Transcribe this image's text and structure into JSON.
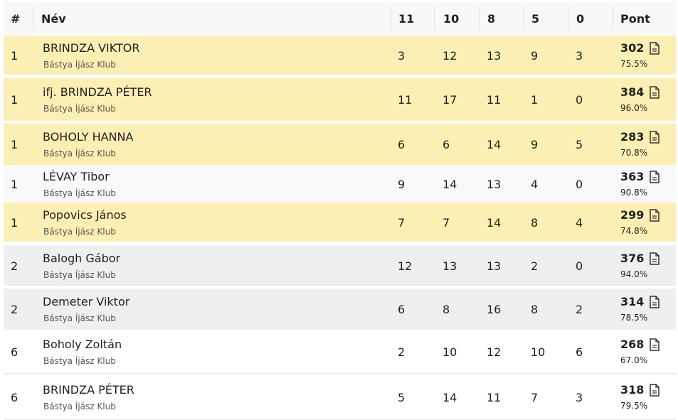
{
  "table": {
    "header": [
      "#",
      "Név",
      "11",
      "10",
      "8",
      "5",
      "0",
      "Pont"
    ],
    "rows": [
      {
        "rank": "1",
        "name": "BRINDZA VIKTOR",
        "club": "Bástya Íjász Klub",
        "counts": [
          3,
          12,
          13,
          9,
          3
        ],
        "points": 302,
        "percent": "75.5%"
      },
      {
        "rank": "1",
        "name": "ifj. BRINDZA PÉTER",
        "club": "Bástya Íjász Klub",
        "counts": [
          11,
          17,
          11,
          1,
          0
        ],
        "points": 384,
        "percent": "96.0%"
      },
      {
        "rank": "1",
        "name": "BOHOLY HANNA",
        "club": "Bástya Íjász Klub",
        "counts": [
          6,
          6,
          14,
          9,
          5
        ],
        "points": 283,
        "percent": "70.8%"
      },
      {
        "rank": "1",
        "name": "LÉVAY Tibor",
        "club": "Bástya Íjász Klub",
        "counts": [
          9,
          14,
          13,
          4,
          0
        ],
        "points": 363,
        "percent": "90.8%"
      },
      {
        "rank": "1",
        "name": "Popovics János",
        "club": "Bástya Íjász Klub",
        "counts": [
          7,
          7,
          14,
          8,
          4
        ],
        "points": 299,
        "percent": "74.8%"
      },
      {
        "rank": "2",
        "name": "Balogh Gábor",
        "club": "Bástya Íjász Klub",
        "counts": [
          12,
          13,
          13,
          2,
          0
        ],
        "points": 376,
        "percent": "94.0%"
      },
      {
        "rank": "2",
        "name": "Demeter Viktor",
        "club": "Bástya Íjász Klub",
        "counts": [
          6,
          8,
          16,
          8,
          2
        ],
        "points": 314,
        "percent": "78.5%"
      },
      {
        "rank": "6",
        "name": "Boholy Zoltán",
        "club": "Bástya Íjász Klub",
        "counts": [
          2,
          10,
          12,
          10,
          6
        ],
        "points": 268,
        "percent": "67.0%"
      },
      {
        "rank": "6",
        "name": "BRINDZA PÉTER",
        "club": "Bástya Íjász Klub",
        "counts": [
          5,
          14,
          11,
          7,
          3
        ],
        "points": 318,
        "percent": "79.5%"
      }
    ]
  }
}
